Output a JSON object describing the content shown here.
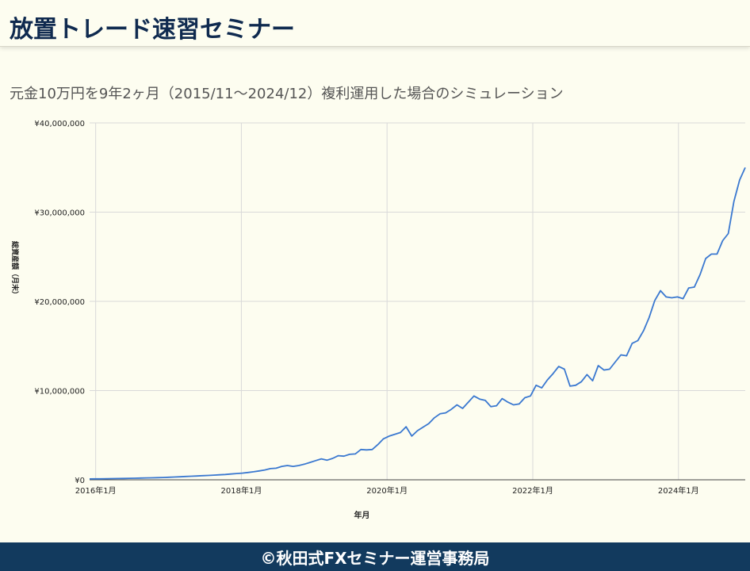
{
  "header": {
    "title": "放置トレード速習セミナー"
  },
  "footer": {
    "text": "©秋田式FXセミナー運営事務局"
  },
  "colors": {
    "line": "#3a78d0",
    "background": "#fdfdf0",
    "grid": "#d9d9d9",
    "footer": "#123a5e",
    "title": "#0f2a4f"
  },
  "chart_data": {
    "type": "line",
    "title": "元金10万円を9年2ヶ月（2015/11～2024/12）複利運用した場合のシミュレーション",
    "xlabel": "年月",
    "ylabel": "総資産額（月末）",
    "ylim": [
      0,
      40000000
    ],
    "yticks": [
      "¥0",
      "¥10,000,000",
      "¥20,000,000",
      "¥30,000,000",
      "¥40,000,000"
    ],
    "xticks": [
      "2016年1月",
      "2018年1月",
      "2020年1月",
      "2022年1月",
      "2024年1月"
    ],
    "x_range": [
      "2015-12",
      "2024-12"
    ],
    "grid": true,
    "series": [
      {
        "name": "",
        "values": [
          100000,
          105000,
          110000,
          120000,
          130000,
          140000,
          150000,
          165000,
          180000,
          195000,
          210000,
          225000,
          240000,
          260000,
          285000,
          310000,
          340000,
          370000,
          400000,
          430000,
          460000,
          490000,
          520000,
          560000,
          600000,
          650000,
          700000,
          750000,
          820000,
          900000,
          1000000,
          1100000,
          1250000,
          1300000,
          1500000,
          1600000,
          1500000,
          1600000,
          1750000,
          1950000,
          2150000,
          2350000,
          2200000,
          2400000,
          2700000,
          2650000,
          2850000,
          2900000,
          3400000,
          3350000,
          3400000,
          3950000,
          4600000,
          4900000,
          5100000,
          5300000,
          5950000,
          4900000,
          5500000,
          5900000,
          6300000,
          6950000,
          7400000,
          7500000,
          7900000,
          8400000,
          8000000,
          8700000,
          9400000,
          9050000,
          8900000,
          8200000,
          8300000,
          9100000,
          8700000,
          8400000,
          8500000,
          9200000,
          9400000,
          10600000,
          10300000,
          11200000,
          11900000,
          12700000,
          12400000,
          10500000,
          10600000,
          11000000,
          11800000,
          11100000,
          12800000,
          12300000,
          12400000,
          13200000,
          14000000,
          13900000,
          15300000,
          15600000,
          16700000,
          18200000,
          20100000,
          21200000,
          20500000,
          20400000,
          20500000,
          20300000,
          21500000,
          21600000,
          23000000,
          24800000,
          25300000,
          25300000,
          26800000,
          27600000,
          31200000,
          33600000,
          35000000
        ]
      }
    ]
  }
}
